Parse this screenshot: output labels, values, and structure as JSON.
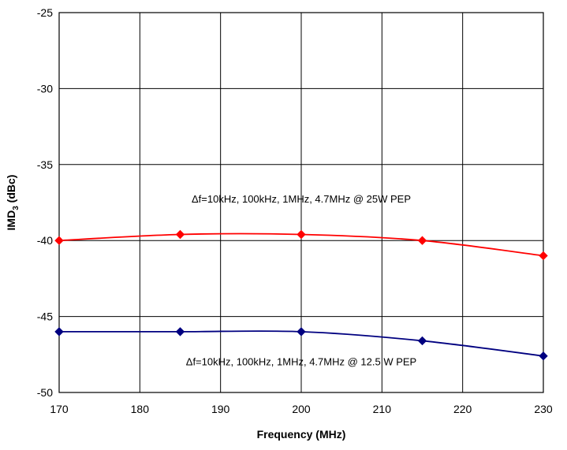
{
  "chart_data": {
    "type": "line",
    "title": "",
    "xlabel": "Frequency (MHz)",
    "ylabel_main": "IMD",
    "ylabel_sub": "3",
    "ylabel_tail": " (dBc)",
    "xlim": [
      170,
      230
    ],
    "ylim": [
      -50,
      -25
    ],
    "xticks": [
      170,
      180,
      190,
      200,
      210,
      220,
      230
    ],
    "yticks": [
      -25,
      -30,
      -35,
      -40,
      -45,
      -50
    ],
    "grid": true,
    "x": [
      170,
      185,
      200,
      215,
      230
    ],
    "series": [
      {
        "color": "#ff0000",
        "values": [
          -40.0,
          -39.6,
          -39.6,
          -40.0,
          -41.0
        ]
      },
      {
        "color": "#000080",
        "values": [
          -46.0,
          -46.0,
          -46.0,
          -46.6,
          -47.6
        ]
      }
    ],
    "annotations": [
      {
        "text": "Δf=10kHz,  100kHz, 1MHz,  4.7MHz  @   25W  PEP",
        "x": 200,
        "y": -37.5
      },
      {
        "text": "Δf=10kHz,  100kHz, 1MHz,  4.7MHz  @   12.5 W  PEP",
        "x": 200,
        "y": -48.2
      }
    ]
  }
}
